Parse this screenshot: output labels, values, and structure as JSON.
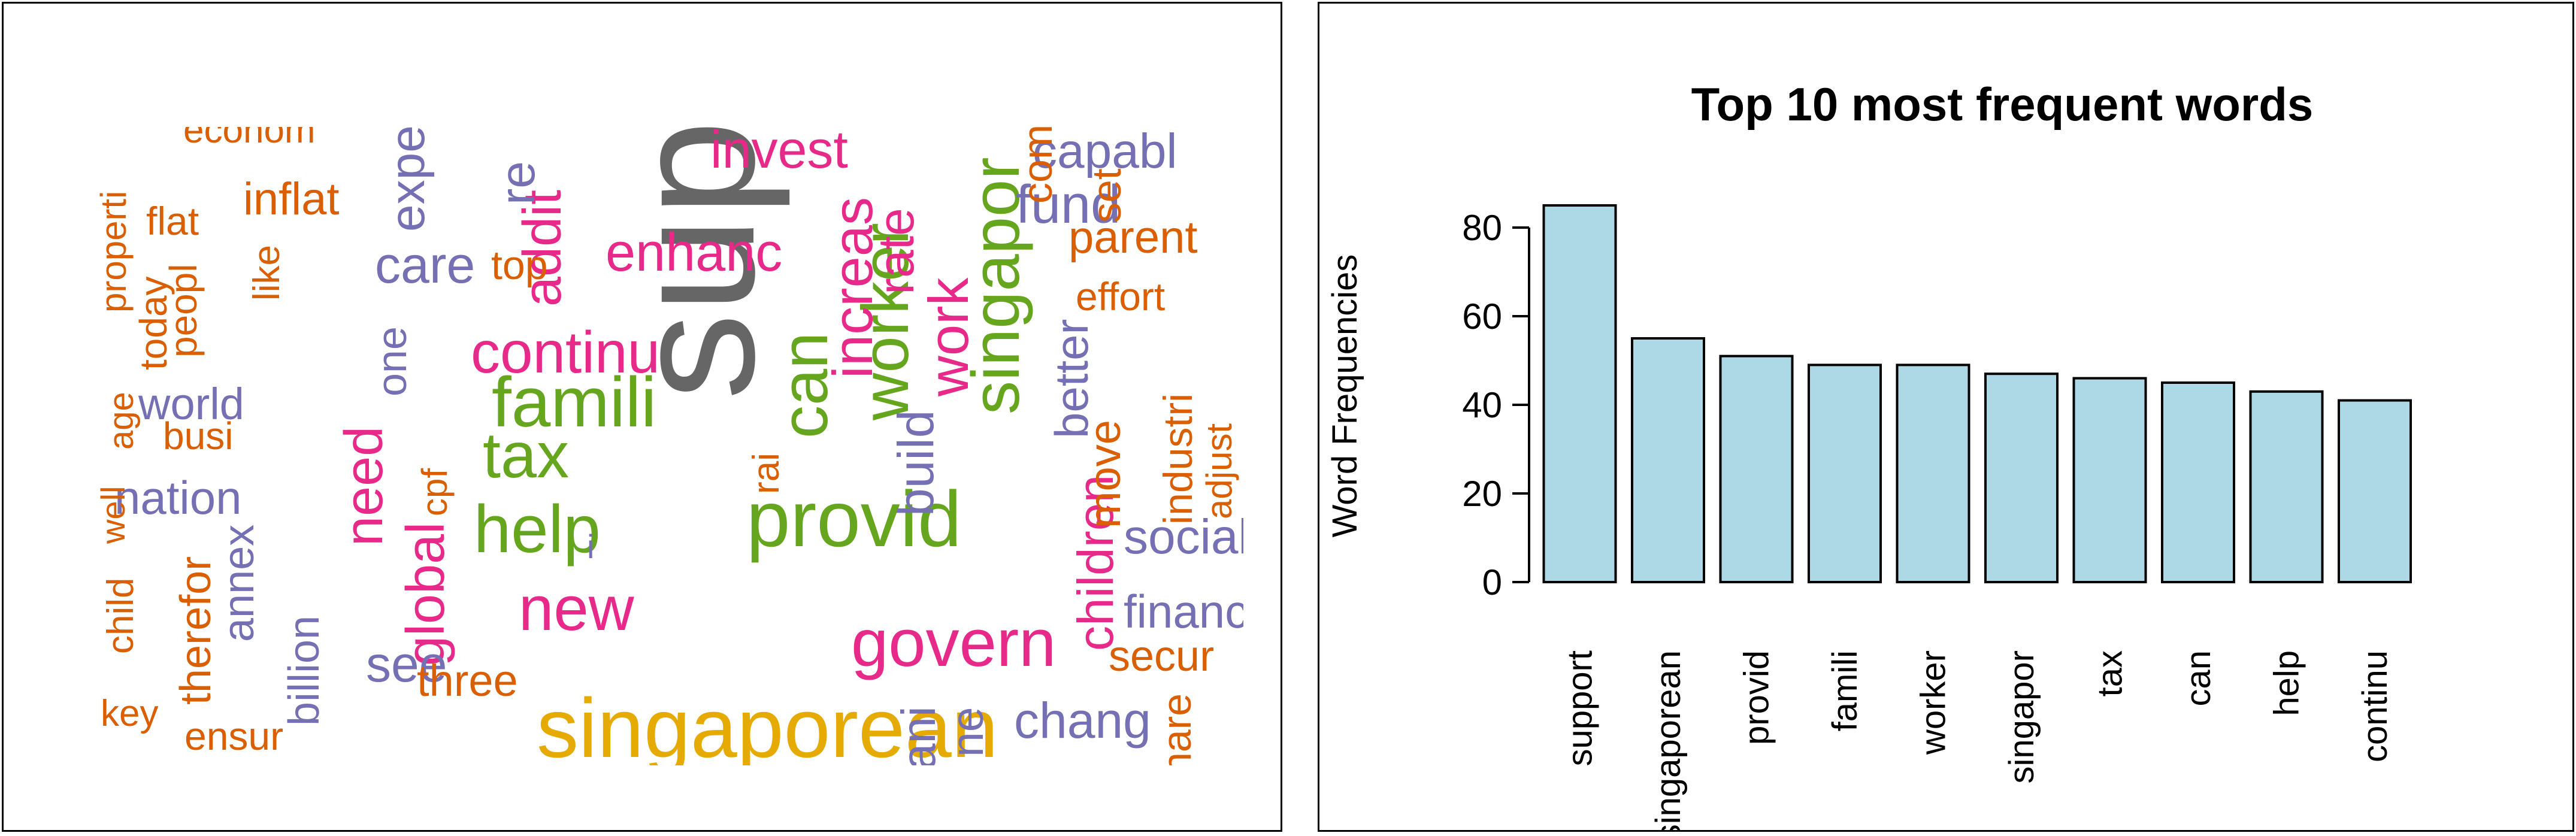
{
  "chart_data": [
    {
      "type": "wordcloud",
      "title": "",
      "colors": {
        "orange": "#d95f02",
        "purple": "#7570b3",
        "pink": "#e7298a",
        "green": "#66a61e",
        "yellow": "#e6ab02",
        "gray": "#666666"
      },
      "words": [
        {
          "text": "support",
          "color": "gray"
        },
        {
          "text": "singaporean",
          "color": "yellow"
        },
        {
          "text": "provid",
          "color": "green"
        },
        {
          "text": "famili",
          "color": "green"
        },
        {
          "text": "worker",
          "color": "green"
        },
        {
          "text": "singapor",
          "color": "green"
        },
        {
          "text": "tax",
          "color": "green"
        },
        {
          "text": "can",
          "color": "green"
        },
        {
          "text": "help",
          "color": "green"
        },
        {
          "text": "continu",
          "color": "pink"
        },
        {
          "text": "govern",
          "color": "pink"
        },
        {
          "text": "new",
          "color": "pink"
        },
        {
          "text": "enhanc",
          "color": "pink"
        },
        {
          "text": "work",
          "color": "pink"
        },
        {
          "text": "increas",
          "color": "pink"
        },
        {
          "text": "rate",
          "color": "pink"
        },
        {
          "text": "addit",
          "color": "pink"
        },
        {
          "text": "global",
          "color": "pink"
        },
        {
          "text": "need",
          "color": "pink"
        },
        {
          "text": "children",
          "color": "pink"
        },
        {
          "text": "invest",
          "color": "pink"
        },
        {
          "text": "fund",
          "color": "purple"
        },
        {
          "text": "care",
          "color": "purple"
        },
        {
          "text": "see",
          "color": "purple"
        },
        {
          "text": "social",
          "color": "purple"
        },
        {
          "text": "financ",
          "color": "purple"
        },
        {
          "text": "chang",
          "color": "purple"
        },
        {
          "text": "build",
          "color": "purple"
        },
        {
          "text": "better",
          "color": "purple"
        },
        {
          "text": "nation",
          "color": "purple"
        },
        {
          "text": "world",
          "color": "purple"
        },
        {
          "text": "one",
          "color": "purple"
        },
        {
          "text": "annex",
          "color": "purple"
        },
        {
          "text": "billion",
          "color": "purple"
        },
        {
          "text": "expect",
          "color": "purple"
        },
        {
          "text": "re",
          "color": "purple"
        },
        {
          "text": "capabl",
          "color": "purple"
        },
        {
          "text": "ani",
          "color": "purple"
        },
        {
          "text": "ne",
          "color": "purple"
        },
        {
          "text": "parent",
          "color": "orange"
        },
        {
          "text": "inflat",
          "color": "orange"
        },
        {
          "text": "three",
          "color": "orange"
        },
        {
          "text": "secur",
          "color": "orange"
        },
        {
          "text": "effort",
          "color": "orange"
        },
        {
          "text": "move",
          "color": "orange"
        },
        {
          "text": "industri",
          "color": "orange"
        },
        {
          "text": "adjust",
          "color": "orange"
        },
        {
          "text": "set",
          "color": "orange"
        },
        {
          "text": "com",
          "color": "orange"
        },
        {
          "text": "top",
          "color": "orange"
        },
        {
          "text": "flat",
          "color": "orange"
        },
        {
          "text": "peopl",
          "color": "orange"
        },
        {
          "text": "today",
          "color": "orange"
        },
        {
          "text": "properti",
          "color": "orange"
        },
        {
          "text": "like",
          "color": "orange"
        },
        {
          "text": "busi",
          "color": "orange"
        },
        {
          "text": "age",
          "color": "orange"
        },
        {
          "text": "well",
          "color": "orange"
        },
        {
          "text": "child",
          "color": "orange"
        },
        {
          "text": "therefor",
          "color": "orange"
        },
        {
          "text": "key",
          "color": "orange"
        },
        {
          "text": "ensur",
          "color": "orange"
        },
        {
          "text": "hare",
          "color": "orange"
        },
        {
          "text": "cpf",
          "color": "orange"
        },
        {
          "text": "rai",
          "color": "orange"
        },
        {
          "text": "econom",
          "color": "orange"
        },
        {
          "text": "i",
          "color": "purple"
        }
      ]
    },
    {
      "type": "bar",
      "title": "Top 10 most frequent words",
      "xlabel": "",
      "ylabel": "Word Frequencies",
      "categories": [
        "support",
        "singaporean",
        "provid",
        "famili",
        "worker",
        "singapor",
        "tax",
        "can",
        "help",
        "continu"
      ],
      "values": [
        85,
        55,
        51,
        49,
        49,
        47,
        46,
        45,
        43,
        41
      ],
      "yticks": [
        0,
        20,
        40,
        60,
        80
      ],
      "ylim": [
        0,
        85
      ],
      "bar_color": "#add8e6",
      "grid": false,
      "label_orientation": "vertical"
    }
  ]
}
